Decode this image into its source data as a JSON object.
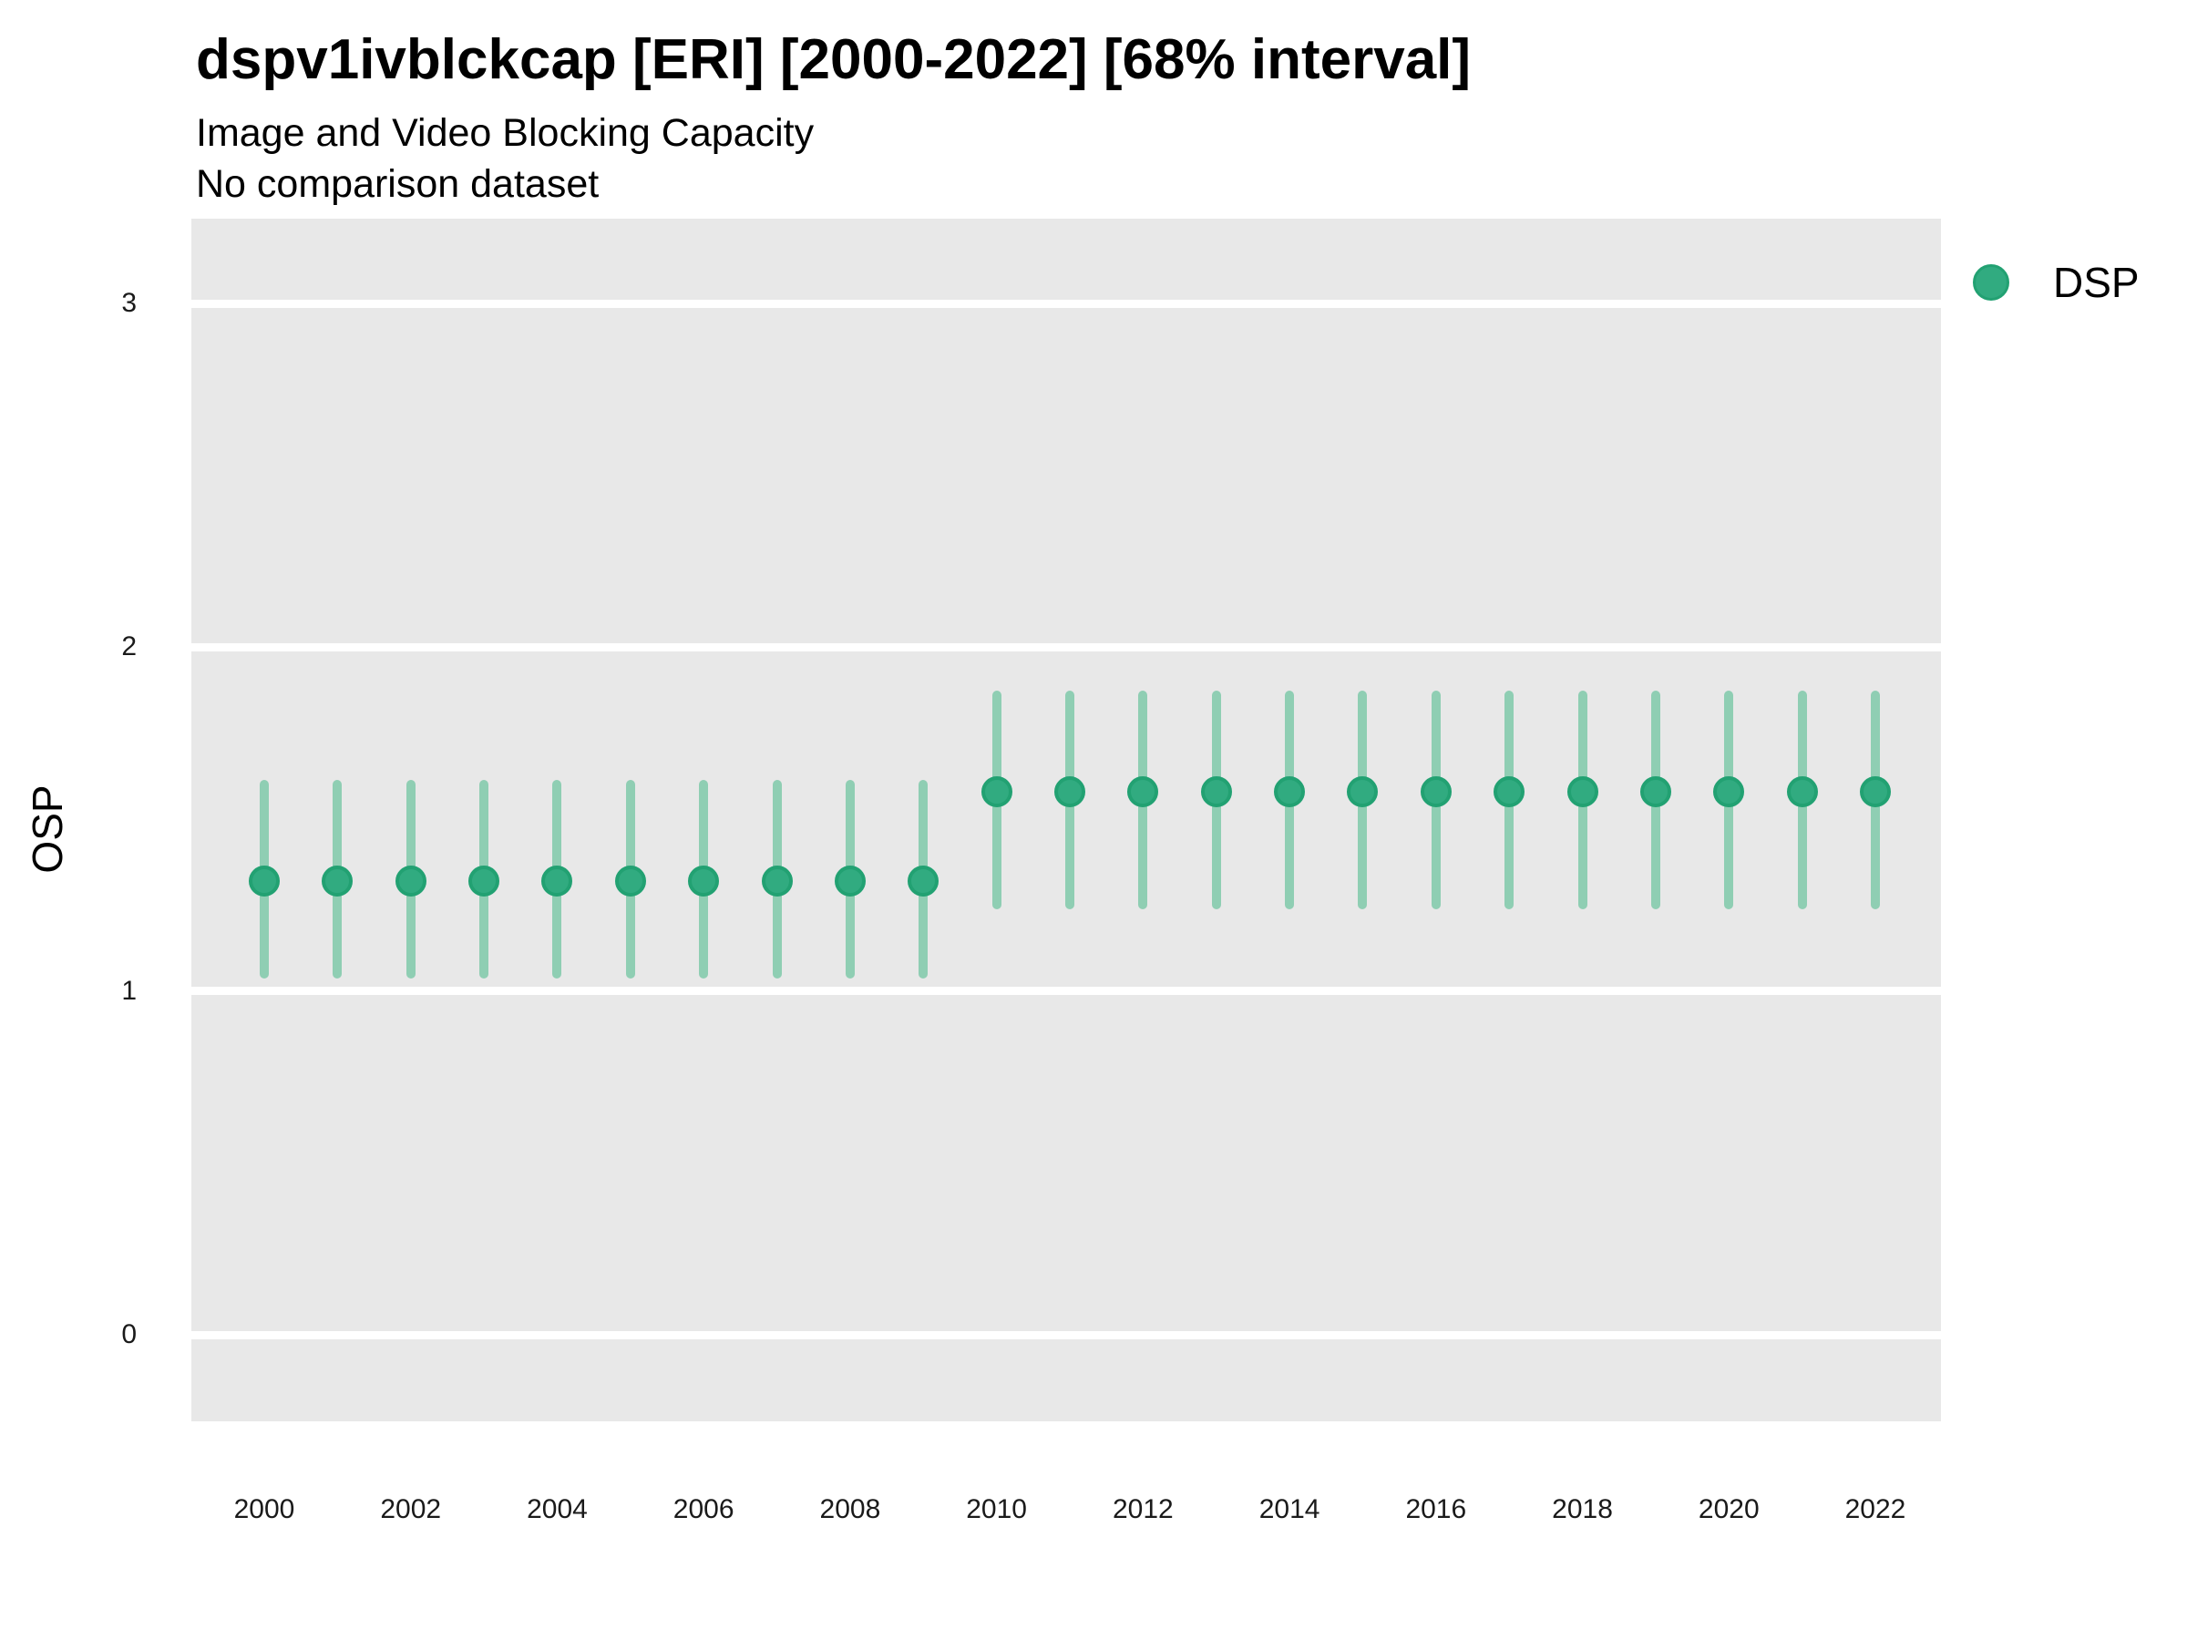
{
  "header": {
    "title": "dspv1ivblckcap [ERI] [2000-2022] [68% interval]",
    "subtitle1": "Image and Video Blocking Capacity",
    "subtitle2": "No comparison dataset"
  },
  "legend": {
    "label": "DSP",
    "position": "right-top"
  },
  "colors": {
    "point": "#31ab80",
    "point_stroke": "#22a172",
    "interval": "#8fceb3",
    "panel_bg": "#e8e8e8",
    "gridline": "#ffffff",
    "text": "#000000"
  },
  "axes": {
    "ylabel": "OSP",
    "xlabel": "",
    "y_ticks": [
      0,
      1,
      2,
      3
    ],
    "x_ticks": [
      2000,
      2002,
      2004,
      2006,
      2008,
      2010,
      2012,
      2014,
      2016,
      2018,
      2020,
      2022
    ],
    "ylim": [
      -0.28,
      3.25
    ],
    "grid": "horizontal-only"
  },
  "chart_data": {
    "type": "scatter",
    "title": "dspv1ivblckcap [ERI] [2000-2022] [68% interval]",
    "subtitle": "Image and Video Blocking Capacity",
    "note": "No comparison dataset",
    "xlabel": "",
    "ylabel": "OSP",
    "series_name": "DSP",
    "interval_level": "68%",
    "points": [
      {
        "year": 2000,
        "value": 1.32,
        "lo": 1.05,
        "hi": 1.6
      },
      {
        "year": 2001,
        "value": 1.32,
        "lo": 1.05,
        "hi": 1.6
      },
      {
        "year": 2002,
        "value": 1.32,
        "lo": 1.05,
        "hi": 1.6
      },
      {
        "year": 2003,
        "value": 1.32,
        "lo": 1.05,
        "hi": 1.6
      },
      {
        "year": 2004,
        "value": 1.32,
        "lo": 1.05,
        "hi": 1.6
      },
      {
        "year": 2005,
        "value": 1.32,
        "lo": 1.05,
        "hi": 1.6
      },
      {
        "year": 2006,
        "value": 1.32,
        "lo": 1.05,
        "hi": 1.6
      },
      {
        "year": 2007,
        "value": 1.32,
        "lo": 1.05,
        "hi": 1.6
      },
      {
        "year": 2008,
        "value": 1.32,
        "lo": 1.05,
        "hi": 1.6
      },
      {
        "year": 2009,
        "value": 1.32,
        "lo": 1.05,
        "hi": 1.6
      },
      {
        "year": 2010,
        "value": 1.58,
        "lo": 1.25,
        "hi": 1.86
      },
      {
        "year": 2011,
        "value": 1.58,
        "lo": 1.25,
        "hi": 1.86
      },
      {
        "year": 2012,
        "value": 1.58,
        "lo": 1.25,
        "hi": 1.86
      },
      {
        "year": 2013,
        "value": 1.58,
        "lo": 1.25,
        "hi": 1.86
      },
      {
        "year": 2014,
        "value": 1.58,
        "lo": 1.25,
        "hi": 1.86
      },
      {
        "year": 2015,
        "value": 1.58,
        "lo": 1.25,
        "hi": 1.86
      },
      {
        "year": 2016,
        "value": 1.58,
        "lo": 1.25,
        "hi": 1.86
      },
      {
        "year": 2017,
        "value": 1.58,
        "lo": 1.25,
        "hi": 1.86
      },
      {
        "year": 2018,
        "value": 1.58,
        "lo": 1.25,
        "hi": 1.86
      },
      {
        "year": 2019,
        "value": 1.58,
        "lo": 1.25,
        "hi": 1.86
      },
      {
        "year": 2020,
        "value": 1.58,
        "lo": 1.25,
        "hi": 1.86
      },
      {
        "year": 2021,
        "value": 1.58,
        "lo": 1.25,
        "hi": 1.86
      },
      {
        "year": 2022,
        "value": 1.58,
        "lo": 1.25,
        "hi": 1.86
      }
    ]
  }
}
